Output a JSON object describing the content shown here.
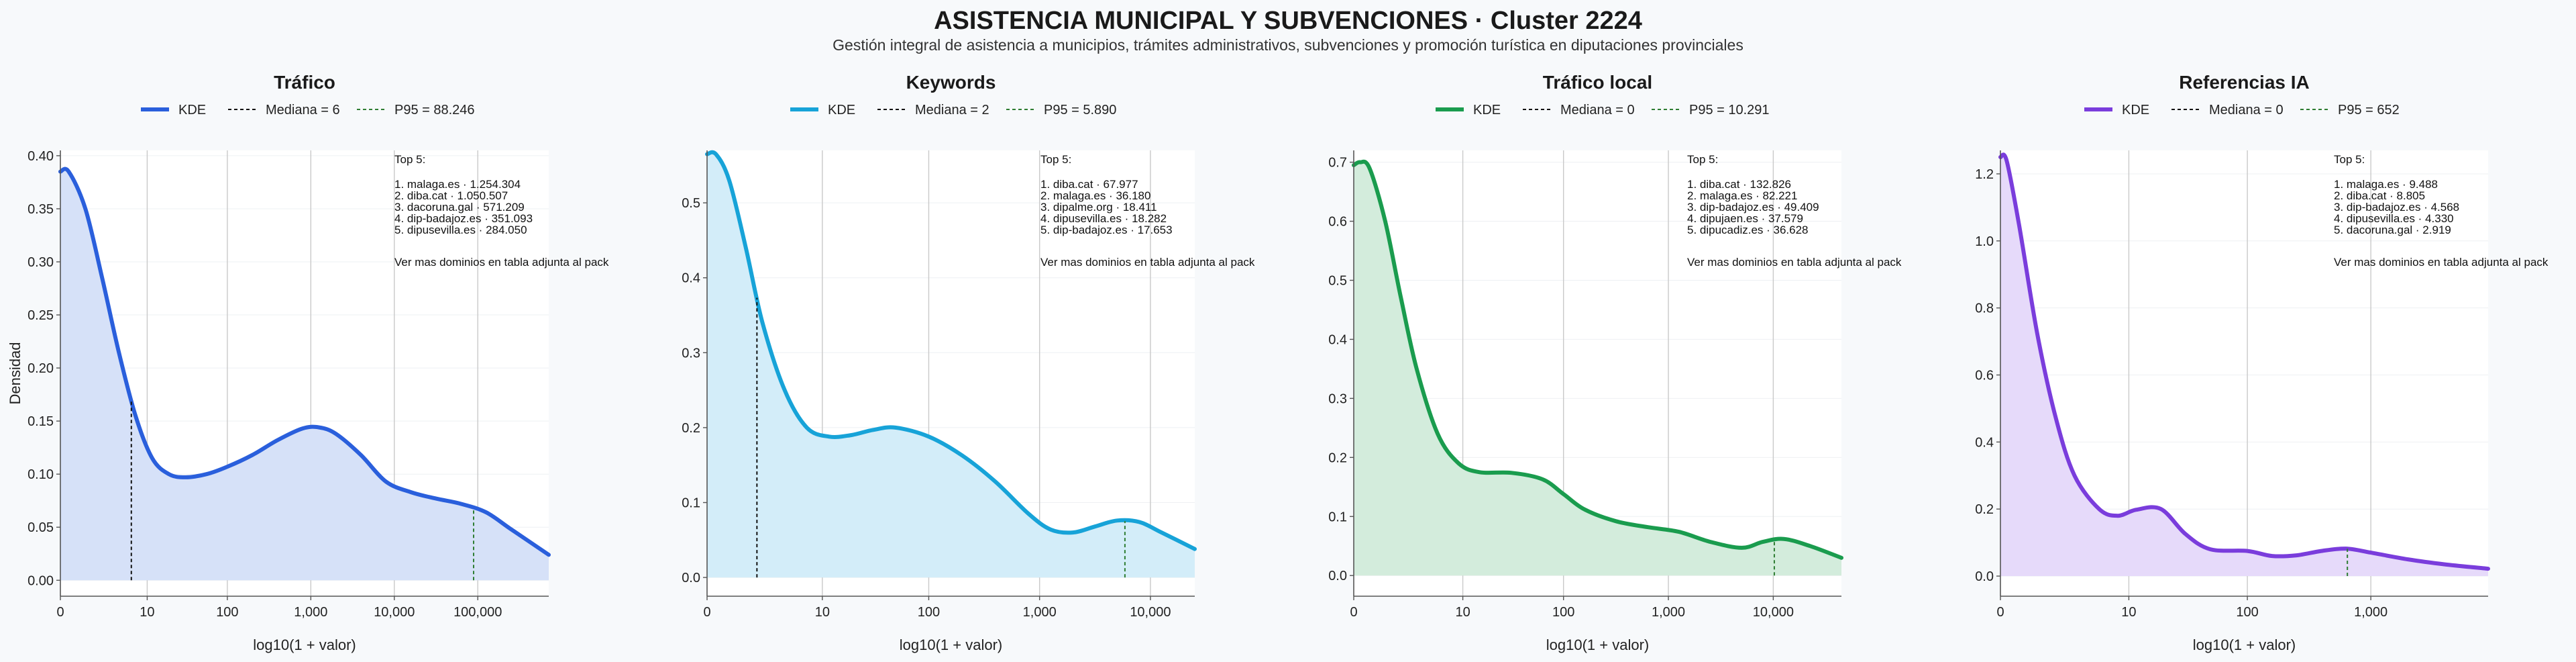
{
  "title": "ASISTENCIA MUNICIPAL Y SUBVENCIONES · Cluster 2224",
  "subtitle": "Gestión integral de asistencia a municipios, trámites administrativos, subvenciones y promoción turística en diputaciones provinciales",
  "ylabel": "Densidad",
  "xlabel": "log10(1 + valor)",
  "top_title": "Top 5:",
  "footer_note": "Ver mas dominios en tabla adjunta al pack",
  "legend_kde": "KDE",
  "median_color": "#111111",
  "p95_color": "#2e7d32",
  "chart_data": [
    {
      "type": "line",
      "title": "Tráfico",
      "color": "#2a5fdc",
      "fill": "#d6e1f8",
      "median_label": "Mediana = 6",
      "p95_label": "P95 = 88.246",
      "median_x": 0.85,
      "p95_x": 4.95,
      "xlim": [
        0,
        5.85
      ],
      "ylim": [
        -0.015,
        0.405
      ],
      "x_ticks": [
        {
          "v": 0,
          "label": "0"
        },
        {
          "v": 1.04,
          "label": "10"
        },
        {
          "v": 2.0,
          "label": "100"
        },
        {
          "v": 3.0,
          "label": "1,000"
        },
        {
          "v": 4.0,
          "label": "10,000"
        },
        {
          "v": 5.0,
          "label": "100,000"
        }
      ],
      "y_ticks": [
        {
          "v": 0,
          "label": "0.00"
        },
        {
          "v": 0.05,
          "label": "0.05"
        },
        {
          "v": 0.1,
          "label": "0.10"
        },
        {
          "v": 0.15,
          "label": "0.15"
        },
        {
          "v": 0.2,
          "label": "0.20"
        },
        {
          "v": 0.25,
          "label": "0.25"
        },
        {
          "v": 0.3,
          "label": "0.30"
        },
        {
          "v": 0.35,
          "label": "0.35"
        },
        {
          "v": 0.4,
          "label": "0.40"
        }
      ],
      "x": [
        0,
        0.1,
        0.3,
        0.5,
        0.7,
        0.9,
        1.1,
        1.3,
        1.5,
        1.75,
        2.0,
        2.3,
        2.6,
        2.9,
        3.1,
        3.3,
        3.6,
        3.9,
        4.2,
        4.5,
        4.8,
        5.1,
        5.4,
        5.85
      ],
      "y": [
        0.385,
        0.385,
        0.35,
        0.285,
        0.215,
        0.155,
        0.115,
        0.1,
        0.097,
        0.1,
        0.107,
        0.118,
        0.132,
        0.143,
        0.144,
        0.138,
        0.118,
        0.093,
        0.083,
        0.077,
        0.072,
        0.064,
        0.048,
        0.024
      ],
      "top5": [
        "1. malaga.es · 1.254.304",
        "2. diba.cat · 1.050.507",
        "3. dacoruna.gal · 571.209",
        "4. dip-badajoz.es · 351.093",
        "5. dipusevilla.es · 284.050"
      ]
    },
    {
      "type": "line",
      "title": "Keywords",
      "color": "#17a3d8",
      "fill": "#d3edf9",
      "median_label": "Mediana = 2",
      "p95_label": "P95 = 5.890",
      "median_x": 0.45,
      "p95_x": 3.77,
      "xlim": [
        0,
        4.4
      ],
      "ylim": [
        -0.025,
        0.57
      ],
      "x_ticks": [
        {
          "v": 0,
          "label": "0"
        },
        {
          "v": 1.04,
          "label": "10"
        },
        {
          "v": 2.0,
          "label": "100"
        },
        {
          "v": 3.0,
          "label": "1,000"
        },
        {
          "v": 4.0,
          "label": "10,000"
        }
      ],
      "y_ticks": [
        {
          "v": 0,
          "label": "0.0"
        },
        {
          "v": 0.1,
          "label": "0.1"
        },
        {
          "v": 0.2,
          "label": "0.2"
        },
        {
          "v": 0.3,
          "label": "0.3"
        },
        {
          "v": 0.4,
          "label": "0.4"
        },
        {
          "v": 0.5,
          "label": "0.5"
        }
      ],
      "x": [
        0,
        0.08,
        0.2,
        0.35,
        0.5,
        0.7,
        0.9,
        1.1,
        1.3,
        1.5,
        1.7,
        2.0,
        2.3,
        2.6,
        2.9,
        3.1,
        3.3,
        3.5,
        3.7,
        3.9,
        4.1,
        4.4
      ],
      "y": [
        0.565,
        0.565,
        0.53,
        0.44,
        0.34,
        0.25,
        0.2,
        0.188,
        0.19,
        0.197,
        0.2,
        0.188,
        0.163,
        0.128,
        0.085,
        0.064,
        0.06,
        0.068,
        0.076,
        0.074,
        0.06,
        0.038
      ],
      "top5": [
        "1. diba.cat · 67.977",
        "2. malaga.es · 36.180",
        "3. dipalme.org · 18.411",
        "4. dipusevilla.es · 18.282",
        "5. dip-badajoz.es · 17.653"
      ]
    },
    {
      "type": "line",
      "title": "Tráfico local",
      "color": "#1a9c4e",
      "fill": "#d3ecdc",
      "median_label": "Mediana = 0",
      "p95_label": "P95 = 10.291",
      "median_x": 0,
      "p95_x": 4.01,
      "xlim": [
        0,
        4.65
      ],
      "ylim": [
        -0.035,
        0.72
      ],
      "x_ticks": [
        {
          "v": 0,
          "label": "0"
        },
        {
          "v": 1.04,
          "label": "10"
        },
        {
          "v": 2.0,
          "label": "100"
        },
        {
          "v": 3.0,
          "label": "1,000"
        },
        {
          "v": 4.0,
          "label": "10,000"
        }
      ],
      "y_ticks": [
        {
          "v": 0,
          "label": "0.0"
        },
        {
          "v": 0.1,
          "label": "0.1"
        },
        {
          "v": 0.2,
          "label": "0.2"
        },
        {
          "v": 0.3,
          "label": "0.3"
        },
        {
          "v": 0.4,
          "label": "0.4"
        },
        {
          "v": 0.5,
          "label": "0.5"
        },
        {
          "v": 0.6,
          "label": "0.6"
        },
        {
          "v": 0.7,
          "label": "0.7"
        }
      ],
      "x": [
        0,
        0.06,
        0.15,
        0.3,
        0.45,
        0.6,
        0.8,
        1.0,
        1.2,
        1.5,
        1.8,
        2.0,
        2.2,
        2.5,
        2.8,
        3.1,
        3.4,
        3.7,
        3.9,
        4.1,
        4.35,
        4.65
      ],
      "y": [
        0.695,
        0.7,
        0.69,
        0.6,
        0.47,
        0.35,
        0.24,
        0.19,
        0.175,
        0.174,
        0.163,
        0.138,
        0.112,
        0.092,
        0.082,
        0.074,
        0.057,
        0.047,
        0.057,
        0.062,
        0.05,
        0.03
      ],
      "top5": [
        "1. diba.cat · 132.826",
        "2. malaga.es · 82.221",
        "3. dip-badajoz.es · 49.409",
        "4. dipujaen.es · 37.579",
        "5. dipucadiz.es · 36.628"
      ]
    },
    {
      "type": "line",
      "title": "Referencias IA",
      "color": "#7a3ddc",
      "fill": "#e6dafa",
      "median_label": "Mediana = 0",
      "p95_label": "P95 = 652",
      "median_x": 0,
      "p95_x": 2.81,
      "xlim": [
        0,
        3.95
      ],
      "ylim": [
        -0.06,
        1.27
      ],
      "x_ticks": [
        {
          "v": 0,
          "label": "0"
        },
        {
          "v": 1.04,
          "label": "10"
        },
        {
          "v": 2.0,
          "label": "100"
        },
        {
          "v": 3.0,
          "label": "1,000"
        }
      ],
      "y_ticks": [
        {
          "v": 0,
          "label": "0.0"
        },
        {
          "v": 0.2,
          "label": "0.2"
        },
        {
          "v": 0.4,
          "label": "0.4"
        },
        {
          "v": 0.6,
          "label": "0.6"
        },
        {
          "v": 0.8,
          "label": "0.8"
        },
        {
          "v": 1.0,
          "label": "1.0"
        },
        {
          "v": 1.2,
          "label": "1.2"
        }
      ],
      "x": [
        0,
        0.05,
        0.15,
        0.3,
        0.45,
        0.6,
        0.8,
        0.95,
        1.1,
        1.3,
        1.5,
        1.7,
        2.0,
        2.2,
        2.4,
        2.6,
        2.8,
        3.0,
        3.3,
        3.6,
        3.95
      ],
      "y": [
        1.25,
        1.24,
        1.05,
        0.72,
        0.47,
        0.3,
        0.2,
        0.18,
        0.198,
        0.2,
        0.125,
        0.08,
        0.075,
        0.06,
        0.062,
        0.075,
        0.082,
        0.07,
        0.05,
        0.035,
        0.022
      ],
      "top5": [
        "1. malaga.es · 9.488",
        "2. diba.cat · 8.805",
        "3. dip-badajoz.es · 4.568",
        "4. dipusevilla.es · 4.330",
        "5. dacoruna.gal · 2.919"
      ]
    }
  ]
}
